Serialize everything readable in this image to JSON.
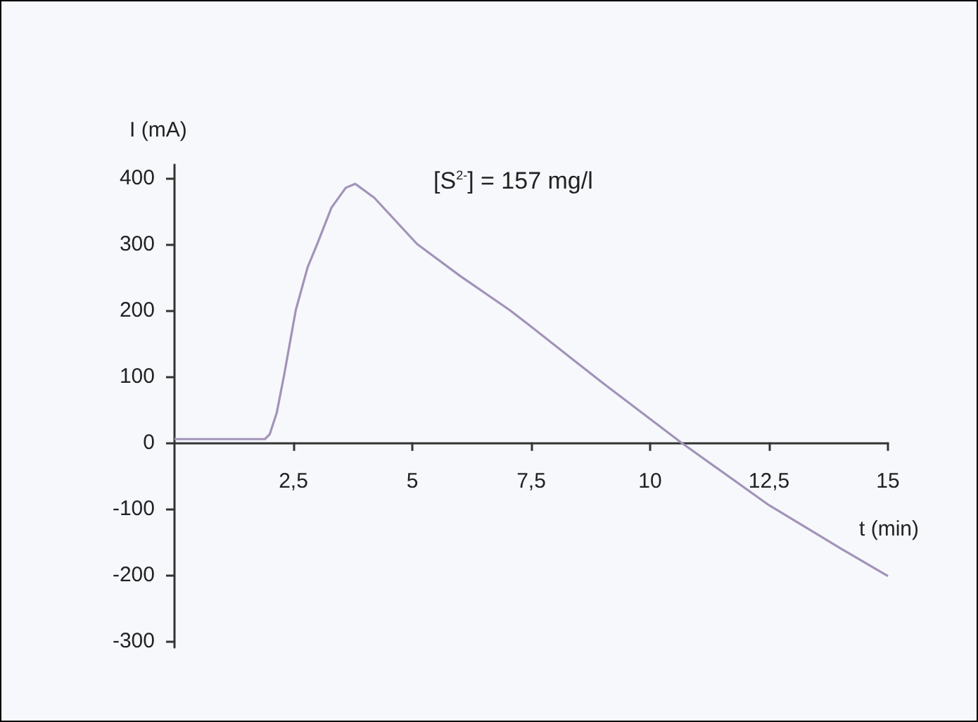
{
  "chart_data": {
    "type": "line",
    "xlabel": "t (min)",
    "ylabel": "I (mA)",
    "annotations": [
      "[S$^{2-}$] = 157 mg/l"
    ],
    "x": [
      0,
      1,
      1.9,
      2.0,
      2.15,
      2.3,
      2.55,
      2.8,
      3.0,
      3.3,
      3.6,
      3.8,
      4.2,
      5.1,
      6,
      7.05,
      7.5,
      9,
      10.65,
      12.5,
      14,
      15
    ],
    "series": [
      {
        "color": "#a293b8",
        "values": [
          5,
          5,
          5,
          12,
          45,
          100,
          200,
          265,
          300,
          355,
          385,
          391,
          370,
          300,
          252,
          200,
          175,
          90,
          0,
          -95,
          -160,
          -202
        ]
      }
    ],
    "xlim": [
      0,
      15
    ],
    "xticks": [
      {
        "value": 2.5,
        "label": "2,5"
      },
      5,
      {
        "value": 7.5,
        "label": "7,5"
      },
      10,
      {
        "value": 12.5,
        "label": "12,5"
      },
      15
    ],
    "ylim": [
      -310,
      420
    ],
    "yticks": [
      -300,
      -200,
      -100,
      0,
      100,
      200,
      300,
      400
    ],
    "marker": "none",
    "line_style": "solid"
  }
}
